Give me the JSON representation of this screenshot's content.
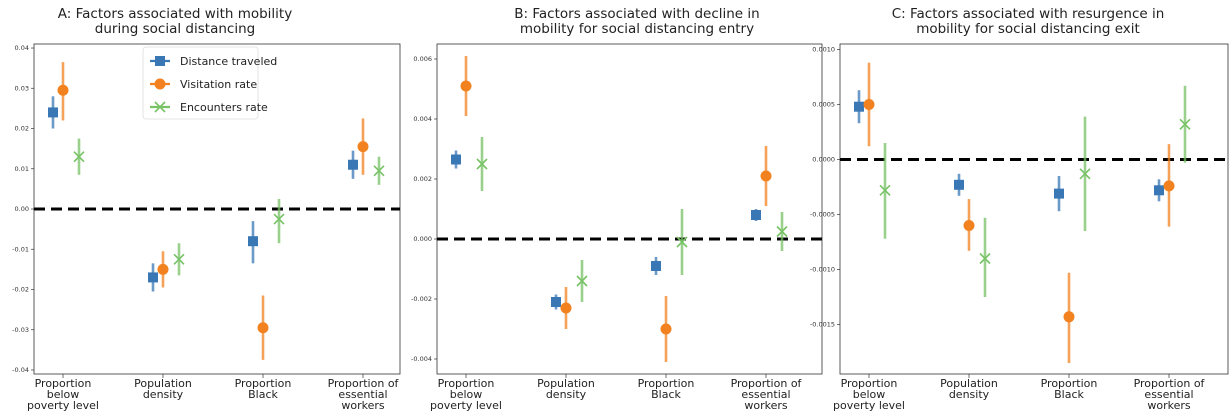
{
  "chart_data": [
    {
      "type": "scatter",
      "title": "A: Factors associated with mobility\nduring social distancing",
      "categories": [
        "Proportion\nbelow\npoverty level",
        "Population\ndensity",
        "Proportion\nBlack",
        "Proportion of\nessential\nworkers"
      ],
      "ylim": [
        -0.041,
        0.041
      ],
      "yticks": [
        "0.04",
        "0.03",
        "0.02",
        "0.01",
        "0.00",
        "-0.01",
        "-0.02",
        "-0.03",
        "-0.04"
      ],
      "ytick_values": [
        0.04,
        0.03,
        0.02,
        0.01,
        0.0,
        -0.01,
        -0.02,
        -0.03,
        -0.04
      ],
      "reference_line": 0,
      "grid": false,
      "legend": "top-center",
      "series": [
        {
          "name": "Distance traveled",
          "values": [
            0.024,
            -0.017,
            -0.008,
            0.011
          ],
          "lower": [
            0.02,
            -0.0205,
            -0.0135,
            0.0075
          ],
          "upper": [
            0.028,
            -0.0135,
            -0.003,
            0.0145
          ]
        },
        {
          "name": "Visitation rate",
          "values": [
            0.0295,
            -0.015,
            -0.0295,
            0.0155
          ],
          "lower": [
            0.022,
            -0.0195,
            -0.0375,
            0.0085
          ],
          "upper": [
            0.0365,
            -0.0105,
            -0.0215,
            0.0225
          ]
        },
        {
          "name": "Encounters rate",
          "values": [
            0.013,
            -0.0125,
            -0.0025,
            0.0095
          ],
          "lower": [
            0.0085,
            -0.0165,
            -0.0085,
            0.006
          ],
          "upper": [
            0.0175,
            -0.0085,
            0.0025,
            0.013
          ]
        }
      ]
    },
    {
      "type": "scatter",
      "title": "B: Factors associated with decline in\nmobility for social distancing entry",
      "categories": [
        "Proportion\nbelow\npoverty level",
        "Population\ndensity",
        "Proportion\nBlack",
        "Proportion of\nessential\nworkers"
      ],
      "ylim": [
        -0.0045,
        0.0065
      ],
      "yticks": [
        "0.006",
        "0.004",
        "0.002",
        "0.000",
        "-0.002",
        "-0.004"
      ],
      "ytick_values": [
        0.006,
        0.004,
        0.002,
        0.0,
        -0.002,
        -0.004
      ],
      "reference_line": 0,
      "grid": false,
      "series": [
        {
          "name": "Distance traveled",
          "values": [
            0.00265,
            -0.0021,
            -0.0009,
            0.0008
          ],
          "lower": [
            0.00235,
            -0.00235,
            -0.0012,
            0.0006
          ],
          "upper": [
            0.00295,
            -0.00185,
            -0.0006,
            0.001
          ]
        },
        {
          "name": "Visitation rate",
          "values": [
            0.0051,
            -0.0023,
            -0.003,
            0.0021
          ],
          "lower": [
            0.0041,
            -0.003,
            -0.0041,
            0.0011
          ],
          "upper": [
            0.0061,
            -0.0016,
            -0.0019,
            0.0031
          ]
        },
        {
          "name": "Encounters rate",
          "values": [
            0.0025,
            -0.0014,
            -0.0001,
            0.00025
          ],
          "lower": [
            0.0016,
            -0.0021,
            -0.0012,
            -0.0004
          ],
          "upper": [
            0.0034,
            -0.0007,
            0.001,
            0.0009
          ]
        }
      ]
    },
    {
      "type": "scatter",
      "title": "C: Factors associated with resurgence in\nmobility for social distancing exit",
      "categories": [
        "Proportion\nbelow\npoverty level",
        "Population\ndensity",
        "Proportion\nBlack",
        "Proportion of\nessential\nworkers"
      ],
      "ylim": [
        -0.00195,
        0.00105
      ],
      "yticks": [
        "0.0010",
        "0.0005",
        "0.0000",
        "-0.0005",
        "-0.0010",
        "-0.0015"
      ],
      "ytick_values": [
        0.001,
        0.0005,
        0.0,
        -0.0005,
        -0.001,
        -0.0015
      ],
      "reference_line": 0,
      "grid": false,
      "series": [
        {
          "name": "Distance traveled",
          "values": [
            0.00048,
            -0.00023,
            -0.00031,
            -0.00028
          ],
          "lower": [
            0.00033,
            -0.00033,
            -0.00047,
            -0.00038
          ],
          "upper": [
            0.00063,
            -0.00013,
            -0.00015,
            -0.00018
          ]
        },
        {
          "name": "Visitation rate",
          "values": [
            0.0005,
            -0.0006,
            -0.00143,
            -0.00024
          ],
          "lower": [
            0.00012,
            -0.00083,
            -0.00185,
            -0.00061
          ],
          "upper": [
            0.00088,
            -0.00036,
            -0.00103,
            0.00014
          ]
        },
        {
          "name": "Encounters rate",
          "values": [
            -0.00028,
            -0.0009,
            -0.00013,
            0.00032
          ],
          "lower": [
            -0.00072,
            -0.00125,
            -0.00065,
            -3e-05
          ],
          "upper": [
            0.00015,
            -0.00053,
            0.00039,
            0.00067
          ]
        }
      ]
    }
  ],
  "colors": {
    "Distance traveled": "#3a78b5",
    "Visitation rate": "#f28220",
    "Encounters rate": "#77c265",
    "reference_line": "#000000",
    "axes": "#333333"
  }
}
